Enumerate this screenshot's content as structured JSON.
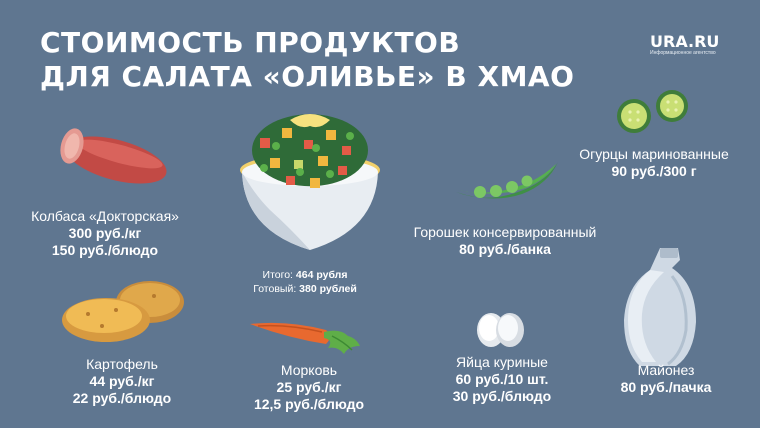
{
  "title": {
    "line1": "СТОИМОСТЬ ПРОДУКТОВ",
    "line2": "ДЛЯ САЛАТА «ОЛИВЬЕ» В ХМАО"
  },
  "logo": {
    "name": "URA.RU",
    "tagline": "Информационное агентство"
  },
  "total": {
    "sum_label": "Итого:",
    "sum_value": "464 рубля",
    "ready_label": "Готовый:",
    "ready_value": "380 рублей"
  },
  "products": {
    "sausage": {
      "name": "Колбаса «Докторская»",
      "price1": "300 руб./кг",
      "price2": "150 руб./блюдо"
    },
    "potato": {
      "name": "Картофель",
      "price1": "44 руб./кг",
      "price2": "22 руб./блюдо"
    },
    "carrot": {
      "name": "Морковь",
      "price1": "25 руб./кг",
      "price2": "12,5 руб./блюдо"
    },
    "peas": {
      "name": "Горошек консервированный",
      "price1": "80 руб./банка"
    },
    "eggs": {
      "name": "Яйца куриные",
      "price1": "60 руб./10 шт.",
      "price2": "30 руб./блюдо"
    },
    "cucumbers": {
      "name": "Огурцы маринованные",
      "price1": "90 руб./300 г"
    },
    "mayo": {
      "name": "Майонез",
      "price1": "80 руб./пачка"
    }
  },
  "colors": {
    "background": "#5f7690",
    "text": "#ffffff"
  }
}
